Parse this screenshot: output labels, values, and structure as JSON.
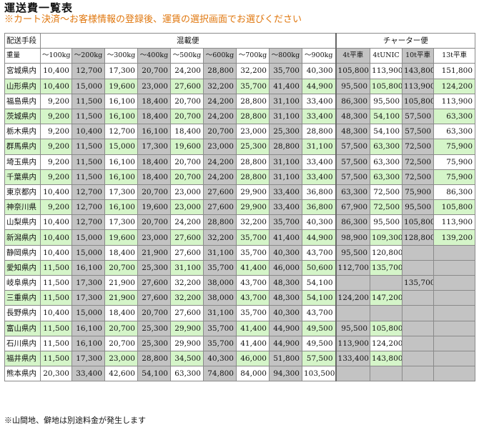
{
  "title": "運送費一覧表",
  "note": "※カート決済～お客様情報の登録後、運賃の選択画面でお選びください",
  "footnote": "※山間地、僻地は別途料金が発生します",
  "header": {
    "method_label": "配送手段",
    "consolidated_label": "混載便",
    "charter_label": "チャーター便",
    "weight_label": "重量",
    "weight_cols": [
      "～100kg",
      "～200kg",
      "～300kg",
      "～400kg",
      "～500kg",
      "～600kg",
      "～700kg",
      "～800kg",
      "～900kg"
    ],
    "truck_cols": [
      "4t平車",
      "4tUNIC",
      "10t平車",
      "13t平車"
    ]
  },
  "colors": {
    "green_row": "#d5f5c9",
    "gray_cell": "#c3c3c3",
    "note_orange": "#e07810"
  },
  "rows": [
    {
      "pref": "宮城県内",
      "vals": [
        "10,400",
        "12,700",
        "17,300",
        "20,700",
        "24,200",
        "28,800",
        "32,200",
        "35,700",
        "40,300"
      ],
      "trucks": [
        "105,800",
        "113,900",
        "143,800",
        "151,800"
      ]
    },
    {
      "pref": "山形県内",
      "vals": [
        "10,400",
        "15,000",
        "19,600",
        "23,000",
        "27,600",
        "32,200",
        "35,700",
        "41,400",
        "44,900"
      ],
      "trucks": [
        "95,500",
        "105,800",
        "113,900",
        "124,200"
      ]
    },
    {
      "pref": "福島県内",
      "vals": [
        "9,200",
        "11,500",
        "16,100",
        "18,400",
        "20,700",
        "24,200",
        "28,800",
        "31,100",
        "33,400"
      ],
      "trucks": [
        "86,300",
        "95,500",
        "105,800",
        "113,900"
      ]
    },
    {
      "pref": "茨城県内",
      "vals": [
        "9,200",
        "11,500",
        "16,100",
        "18,400",
        "20,700",
        "24,200",
        "28,800",
        "31,100",
        "33,400"
      ],
      "trucks": [
        "48,300",
        "54,100",
        "57,500",
        "63,300"
      ]
    },
    {
      "pref": "栃木県内",
      "vals": [
        "9,200",
        "10,400",
        "12,700",
        "16,100",
        "18,400",
        "20,700",
        "23,000",
        "25,300",
        "28,800"
      ],
      "trucks": [
        "48,300",
        "54,100",
        "57,500",
        "63,300"
      ]
    },
    {
      "pref": "群馬県内",
      "vals": [
        "9,200",
        "11,500",
        "15,000",
        "17,300",
        "19,600",
        "23,000",
        "25,300",
        "28,800",
        "31,100"
      ],
      "trucks": [
        "57,500",
        "63,300",
        "72,500",
        "75,900"
      ]
    },
    {
      "pref": "埼玉県内",
      "vals": [
        "9,200",
        "11,500",
        "16,100",
        "18,400",
        "20,700",
        "24,200",
        "28,800",
        "31,100",
        "33,400"
      ],
      "trucks": [
        "57,500",
        "63,300",
        "72,500",
        "75,900"
      ]
    },
    {
      "pref": "千葉県内",
      "vals": [
        "9,200",
        "11,500",
        "16,100",
        "18,400",
        "20,700",
        "24,200",
        "28,800",
        "31,100",
        "33,400"
      ],
      "trucks": [
        "57,500",
        "63,300",
        "72,500",
        "75,900"
      ]
    },
    {
      "pref": "東京都内",
      "vals": [
        "10,400",
        "12,700",
        "17,300",
        "20,700",
        "23,000",
        "27,600",
        "29,900",
        "33,400",
        "36,800"
      ],
      "trucks": [
        "63,300",
        "72,500",
        "75,900",
        "86,300"
      ]
    },
    {
      "pref": "神奈川県",
      "vals": [
        "9,200",
        "12,700",
        "16,100",
        "19,600",
        "23,000",
        "27,600",
        "29,900",
        "33,400",
        "36,800"
      ],
      "trucks": [
        "67,900",
        "72,500",
        "95,500",
        "105,800"
      ]
    },
    {
      "pref": "山梨県内",
      "vals": [
        "10,400",
        "12,700",
        "17,300",
        "20,700",
        "24,200",
        "28,800",
        "32,200",
        "35,700",
        "40,300"
      ],
      "trucks": [
        "86,300",
        "95,500",
        "105,800",
        "113,900"
      ]
    },
    {
      "pref": "新潟県内",
      "vals": [
        "10,400",
        "15,000",
        "19,600",
        "23,000",
        "27,600",
        "32,200",
        "35,700",
        "41,400",
        "44,900"
      ],
      "trucks": [
        "98,900",
        "109,300",
        "128,800",
        "139,200"
      ]
    },
    {
      "pref": "静岡県内",
      "vals": [
        "10,400",
        "15,000",
        "18,400",
        "21,900",
        "27,600",
        "31,100",
        "35,700",
        "40,300",
        "43,700"
      ],
      "trucks": [
        "95,500",
        "120,800",
        "",
        ""
      ]
    },
    {
      "pref": "愛知県内",
      "vals": [
        "11,500",
        "16,100",
        "20,700",
        "25,300",
        "31,100",
        "35,700",
        "41,400",
        "46,000",
        "50,600"
      ],
      "trucks": [
        "112,700",
        "135,700",
        "",
        ""
      ]
    },
    {
      "pref": "岐阜県内",
      "vals": [
        "11,500",
        "17,300",
        "21,900",
        "27,600",
        "32,200",
        "38,000",
        "43,700",
        "48,300",
        "54,100"
      ],
      "trucks": [
        "",
        "",
        "135,700",
        ""
      ]
    },
    {
      "pref": "三重県内",
      "vals": [
        "11,500",
        "17,300",
        "21,900",
        "27,600",
        "32,200",
        "38,000",
        "43,700",
        "48,300",
        "54,100"
      ],
      "trucks": [
        "124,200",
        "147,200",
        "",
        ""
      ]
    },
    {
      "pref": "長野県内",
      "vals": [
        "10,400",
        "15,000",
        "18,400",
        "20,700",
        "27,600",
        "31,100",
        "35,700",
        "40,300",
        "43,700"
      ],
      "trucks": [
        "",
        "",
        "",
        ""
      ]
    },
    {
      "pref": "富山県内",
      "vals": [
        "11,500",
        "16,100",
        "20,700",
        "25,300",
        "29,900",
        "35,700",
        "41,400",
        "44,900",
        "49,500"
      ],
      "trucks": [
        "95,500",
        "105,800",
        "",
        ""
      ]
    },
    {
      "pref": "石川県内",
      "vals": [
        "11,500",
        "16,100",
        "20,700",
        "25,300",
        "29,900",
        "35,700",
        "41,400",
        "44,900",
        "49,500"
      ],
      "trucks": [
        "113,900",
        "124,200",
        "",
        ""
      ]
    },
    {
      "pref": "福井県内",
      "vals": [
        "11,500",
        "17,300",
        "23,000",
        "28,800",
        "34,500",
        "40,300",
        "46,000",
        "51,800",
        "57,500"
      ],
      "trucks": [
        "133,400",
        "143,800",
        "",
        ""
      ]
    },
    {
      "pref": "熊本県内",
      "vals": [
        "20,300",
        "33,400",
        "42,600",
        "54,100",
        "63,300",
        "74,800",
        "84,000",
        "94,300",
        "103,500"
      ],
      "trucks": [
        "",
        "",
        "",
        ""
      ]
    }
  ]
}
